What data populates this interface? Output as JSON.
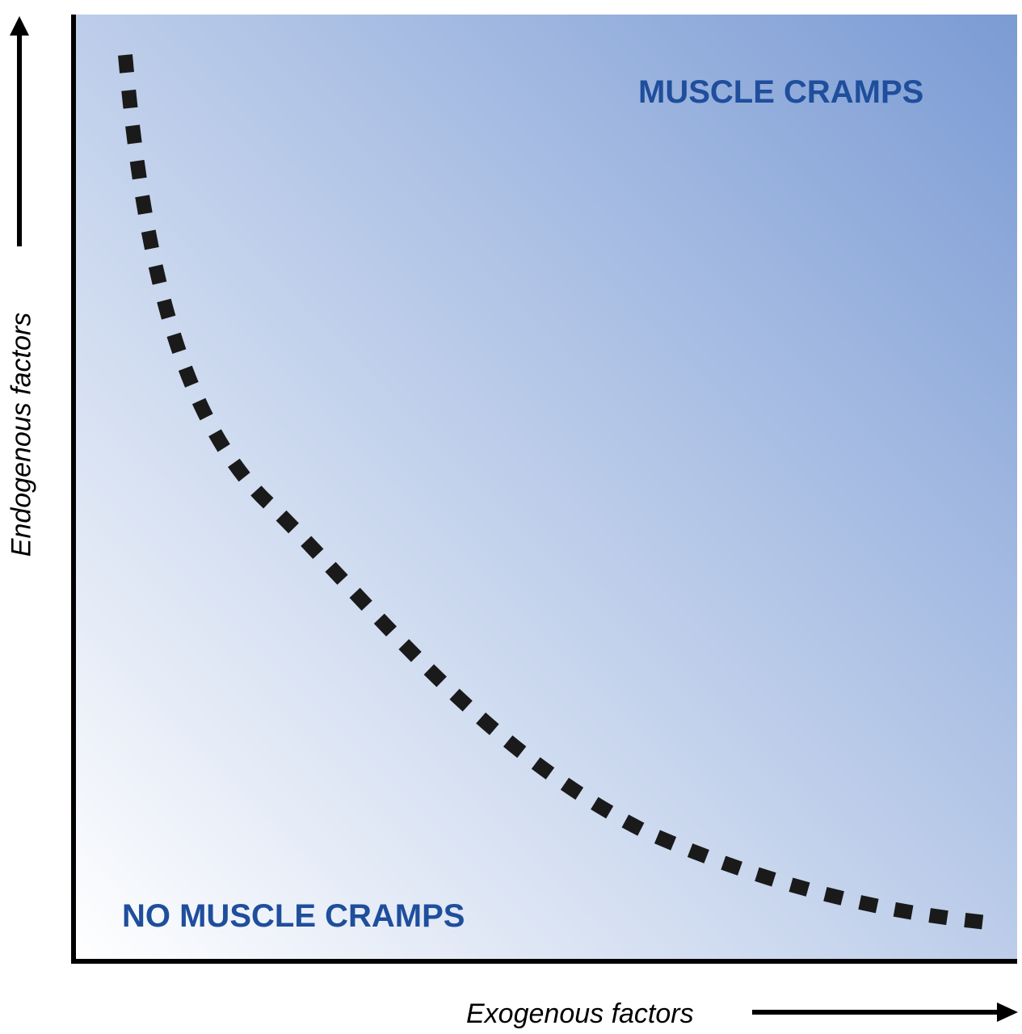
{
  "diagram": {
    "regions": {
      "high": "MUSCLE CRAMPS",
      "low": "NO MUSCLE CRAMPS"
    },
    "axes": {
      "x_label": "Exogenous factors",
      "y_label": "Endogenous factors"
    },
    "threshold_curve": {
      "style": "dashed",
      "shape": "decreasing convex curve",
      "color": "#1a1a1a"
    },
    "colors": {
      "region_text": "#1f4e9c",
      "gradient_light": "#ffffff",
      "gradient_dark": "#7b9bd4",
      "axis": "#000000"
    }
  }
}
